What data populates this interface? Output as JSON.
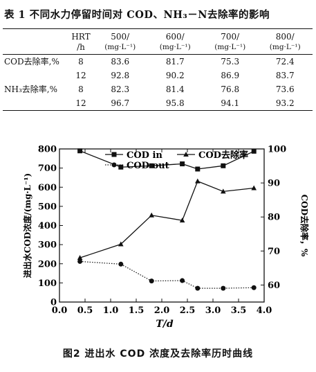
{
  "table": {
    "caption": "表 1   不同水力停留时间对 COD、NH₃－N去除率的影响",
    "header": {
      "hrt": "HRT",
      "hrt_unit": "/h",
      "flows": [
        "500/",
        "600/",
        "700/",
        "800/"
      ],
      "flow_unit": "(mg·L⁻¹)"
    },
    "rows": [
      {
        "label": "COD去除率,%",
        "hrt": "8",
        "values": [
          "83.6",
          "81.7",
          "75.3",
          "72.4"
        ]
      },
      {
        "label": "",
        "hrt": "12",
        "values": [
          "92.8",
          "90.2",
          "86.9",
          "83.7"
        ]
      },
      {
        "label": "NH₃去除率,%",
        "hrt": "8",
        "values": [
          "82.3",
          "81.4",
          "76.8",
          "73.6"
        ]
      },
      {
        "label": "",
        "hrt": "12",
        "values": [
          "96.7",
          "95.8",
          "94.1",
          "93.2"
        ]
      }
    ]
  },
  "chart_data": {
    "type": "line",
    "xlabel": "T/d",
    "ylabel": "进出水COD浓度/(mg·L⁻¹)",
    "y2label": "COD去除率，%",
    "xlim": [
      0,
      4.0
    ],
    "ylim": [
      0,
      800
    ],
    "y2lim": [
      55,
      100
    ],
    "xticks": [
      "0.0",
      "0.5",
      "1.0",
      "1.5",
      "2.0",
      "2.5",
      "3.0",
      "3.5",
      "4.0"
    ],
    "yticks": [
      "0",
      "100",
      "200",
      "300",
      "400",
      "500",
      "600",
      "700",
      "800"
    ],
    "y2ticks": [
      "60",
      "70",
      "80",
      "90",
      "100"
    ],
    "legend_position": "top",
    "series": [
      {
        "name": "COD in",
        "marker": "square",
        "line": "solid",
        "axis": "left",
        "x": [
          0.4,
          1.2,
          1.8,
          2.4,
          2.7,
          3.2,
          3.8
        ],
        "y": [
          790,
          705,
          712,
          722,
          695,
          712,
          788
        ]
      },
      {
        "name": "COD去除率",
        "marker": "triangle",
        "line": "solid",
        "axis": "right",
        "x": [
          0.4,
          1.2,
          1.8,
          2.4,
          2.7,
          3.2,
          3.8
        ],
        "y": [
          68,
          72,
          80.5,
          79,
          90.5,
          87.5,
          88.5
        ]
      },
      {
        "name": "COD out",
        "marker": "circle",
        "line": "dotted",
        "axis": "left",
        "x": [
          0.4,
          1.2,
          1.8,
          2.4,
          2.7,
          3.2,
          3.8
        ],
        "y": [
          212,
          198,
          110,
          112,
          72,
          72,
          75
        ]
      }
    ]
  },
  "figure_caption": "图2   进出水 COD 浓度及去除率历时曲线"
}
